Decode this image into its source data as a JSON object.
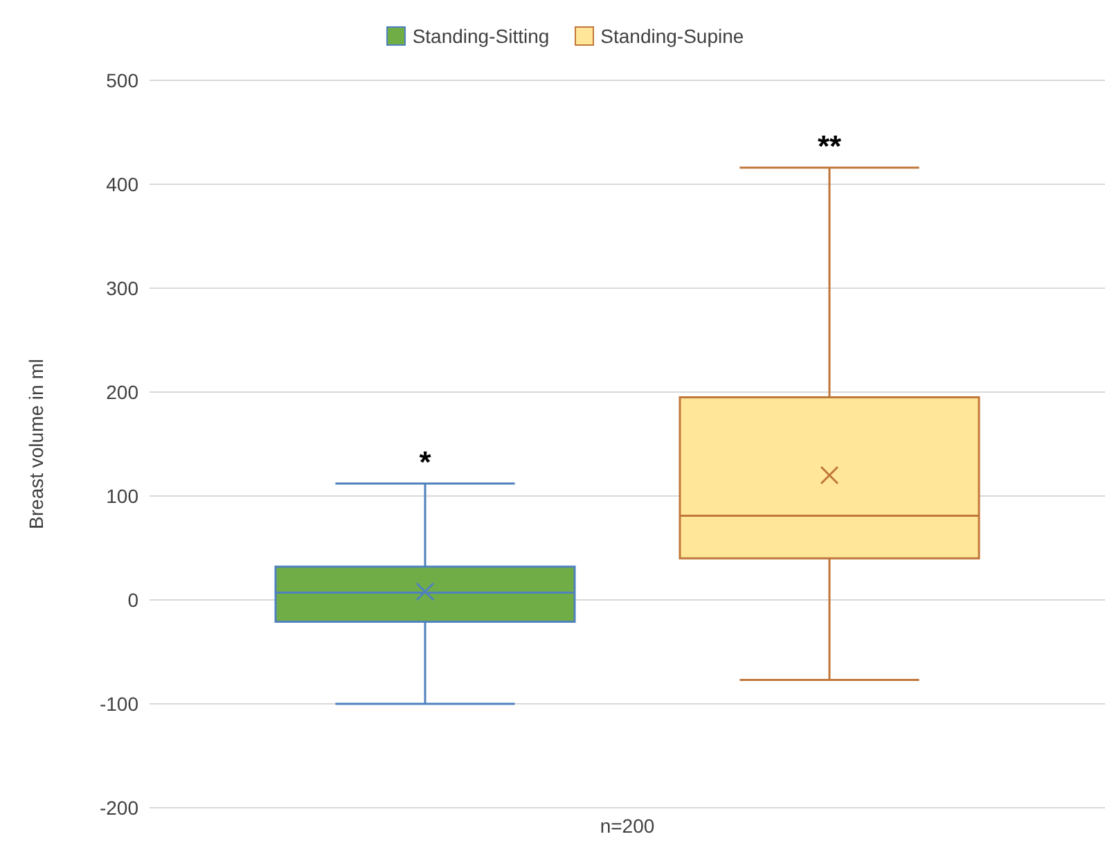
{
  "chart_data": {
    "type": "box",
    "ylabel": "Breast volume in ml",
    "categories": [
      "n=200"
    ],
    "series": [
      {
        "name": "Standing-Sitting",
        "color": "#70ad47",
        "boxes": [
          {
            "low": -100,
            "q1": -21,
            "median": 7,
            "q3": 32,
            "high": 112,
            "mean": 8
          }
        ]
      },
      {
        "name": "Standing-Supine",
        "color": "#ffe699",
        "boxes": [
          {
            "low": -77,
            "q1": 40,
            "median": 81,
            "q3": 195,
            "high": 416,
            "mean": 120
          }
        ]
      }
    ],
    "annotations": [
      "*",
      "**"
    ],
    "ylim": [
      -200,
      500
    ],
    "yticks": [
      -200,
      -100,
      0,
      100,
      200,
      300,
      400,
      500
    ],
    "grid": "y",
    "legend": "top"
  }
}
